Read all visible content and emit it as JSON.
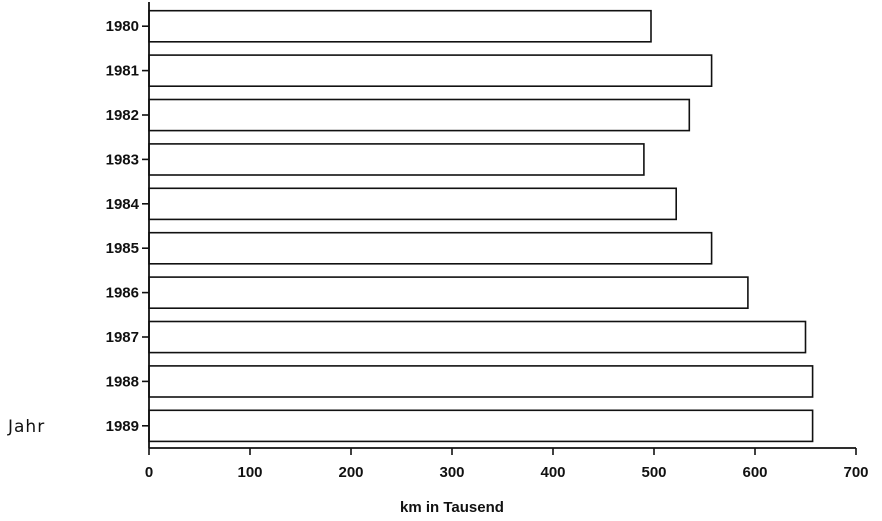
{
  "chart_data": {
    "type": "bar",
    "orientation": "horizontal",
    "categories": [
      "1980",
      "1981",
      "1982",
      "1983",
      "1984",
      "1985",
      "1986",
      "1987",
      "1988",
      "1989"
    ],
    "values": [
      497,
      557,
      535,
      490,
      522,
      557,
      593,
      650,
      657,
      657
    ],
    "xlabel": "km in Tausend",
    "ylabel": "Jahr",
    "xlim": [
      0,
      700
    ],
    "xticks": [
      "0",
      "100",
      "200",
      "300",
      "400",
      "500",
      "600",
      "700"
    ],
    "grid": false,
    "legend": "none"
  }
}
